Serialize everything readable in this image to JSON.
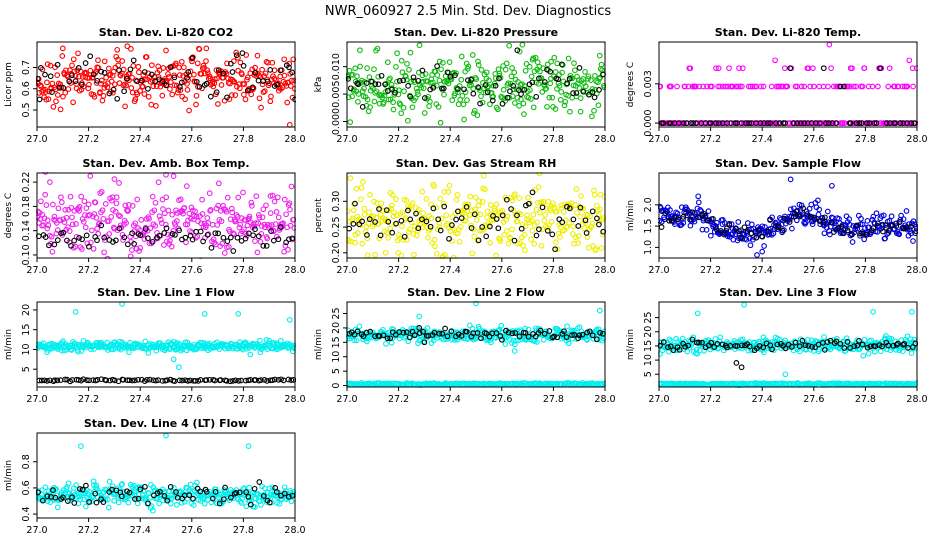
{
  "figure": {
    "title": "NWR_060927  2.5 Min. Std. Dev. Diagnostics"
  },
  "chart_data": [
    {
      "type": "scatter",
      "title": "Stan. Dev. Li-820 CO2",
      "ylabel": "Licor ppm",
      "color": "#ff0000",
      "xlim": [
        27.0,
        28.0
      ],
      "xticks": [
        27.0,
        27.2,
        27.4,
        27.6,
        27.8,
        28.0
      ],
      "ylim": [
        0.42,
        0.82
      ],
      "yticks": [
        0.5,
        0.6,
        0.7
      ],
      "series": [
        {
          "color": "#ff0000",
          "n": 340,
          "center": 0.64,
          "spread": 0.055,
          "outliers": [
            [
              27.1,
              0.79
            ],
            [
              27.35,
              0.8
            ],
            [
              27.5,
              0.78
            ],
            [
              27.98,
              0.43
            ]
          ]
        },
        {
          "color": "#000000",
          "n": 70,
          "center": 0.65,
          "spread": 0.05,
          "outliers": [
            [
              27.01,
              0.55
            ],
            [
              28.0,
              0.55
            ]
          ]
        }
      ]
    },
    {
      "type": "scatter",
      "title": "Stan. Dev. Li-820 Pressure",
      "ylabel": "kPa",
      "color": "#00bb00",
      "xlim": [
        27.0,
        28.0
      ],
      "xticks": [
        27.0,
        27.2,
        27.4,
        27.6,
        27.8,
        28.0
      ],
      "ylim": [
        -0.001,
        0.0145
      ],
      "yticks": [
        0.0,
        0.005,
        0.01
      ],
      "series": [
        {
          "color": "#11bb11",
          "n": 340,
          "center": 0.0065,
          "spread": 0.0025,
          "outliers": [
            [
              27.68,
              0.014
            ],
            [
              27.98,
              0.012
            ],
            [
              27.05,
              0.013
            ]
          ]
        },
        {
          "color": "#000000",
          "n": 70,
          "center": 0.0065,
          "spread": 0.0015,
          "outliers": [
            [
              27.66,
              0.013
            ]
          ]
        }
      ]
    },
    {
      "type": "scatter",
      "title": "Stan. Dev. Li-820 Temp.",
      "ylabel": "degrees C",
      "color": "#ff00ff",
      "xlim": [
        27.0,
        28.0
      ],
      "xticks": [
        27.0,
        27.2,
        27.4,
        27.6,
        27.8,
        28.0
      ],
      "ylim": [
        -0.0003,
        0.0062
      ],
      "yticks": [
        0.0,
        0.003
      ],
      "levels": [
        0.0,
        0.0028,
        0.0042
      ],
      "series": [
        {
          "color": "#ff00ff",
          "n": 260,
          "level_weights": [
            0.55,
            0.35,
            0.1
          ],
          "outliers": [
            [
              27.66,
              0.006
            ],
            [
              27.97,
              0.0048
            ],
            [
              27.45,
              0.0048
            ]
          ]
        },
        {
          "color": "#000000",
          "n": 70,
          "level_weights": [
            0.9,
            0.07,
            0.03
          ],
          "outliers": []
        }
      ]
    },
    {
      "type": "scatter",
      "title": "Stan. Dev. Amb. Box Temp.",
      "ylabel": "degrees C",
      "color": "#ff00ff",
      "xlim": [
        27.0,
        28.0
      ],
      "xticks": [
        27.0,
        27.2,
        27.4,
        27.6,
        27.8,
        28.0
      ],
      "ylim": [
        0.095,
        0.235
      ],
      "yticks": [
        0.1,
        0.14,
        0.18,
        0.22
      ],
      "series": [
        {
          "color": "#ee22ee",
          "n": 340,
          "center": 0.155,
          "spread": 0.028,
          "outliers": [
            [
              27.5,
              0.232
            ],
            [
              27.05,
              0.22
            ],
            [
              27.3,
              0.225
            ]
          ]
        },
        {
          "color": "#000000",
          "n": 70,
          "center": 0.128,
          "spread": 0.012,
          "outliers": []
        }
      ]
    },
    {
      "type": "scatter",
      "title": "Stan. Dev. Gas Stream RH",
      "ylabel": "percent",
      "color": "#ffff00",
      "xlim": [
        27.0,
        28.0
      ],
      "xticks": [
        27.0,
        27.2,
        27.4,
        27.6,
        27.8,
        28.0
      ],
      "ylim": [
        0.19,
        0.355
      ],
      "yticks": [
        0.2,
        0.25,
        0.3
      ],
      "series": [
        {
          "color": "#eeee00",
          "n": 340,
          "center": 0.262,
          "spread": 0.03,
          "outliers": [
            [
              27.53,
              0.35
            ],
            [
              27.15,
              0.2
            ]
          ]
        },
        {
          "color": "#000000",
          "n": 70,
          "center": 0.265,
          "spread": 0.025,
          "outliers": []
        }
      ]
    },
    {
      "type": "scatter",
      "title": "Stan. Dev. Sample Flow",
      "ylabel": "ml/min",
      "color": "#0000ff",
      "xlim": [
        27.0,
        28.0
      ],
      "xticks": [
        27.0,
        27.2,
        27.4,
        27.6,
        27.8,
        28.0
      ],
      "ylim": [
        0.75,
        2.75
      ],
      "yticks": [
        1.0,
        1.5,
        2.0
      ],
      "profile": [
        [
          27.0,
          1.65
        ],
        [
          27.15,
          1.8
        ],
        [
          27.25,
          1.45
        ],
        [
          27.35,
          1.25
        ],
        [
          27.45,
          1.5
        ],
        [
          27.55,
          1.85
        ],
        [
          27.65,
          1.55
        ],
        [
          27.75,
          1.4
        ],
        [
          27.85,
          1.5
        ],
        [
          28.0,
          1.45
        ]
      ],
      "series": [
        {
          "color": "#0000dd",
          "n": 340,
          "spread": 0.14,
          "outliers": [
            [
              27.51,
              2.6
            ],
            [
              27.38,
              0.82
            ],
            [
              27.4,
              0.9
            ],
            [
              27.67,
              2.45
            ]
          ]
        },
        {
          "color": "#000000",
          "n": 70,
          "spread": 0.08,
          "outliers": []
        }
      ]
    },
    {
      "type": "scatter",
      "title": "Stan. Dev. Line 1 Flow",
      "ylabel": "ml/min",
      "color": "#00ffff",
      "xlim": [
        27.0,
        28.0
      ],
      "xticks": [
        27.0,
        27.2,
        27.4,
        27.6,
        27.8,
        28.0
      ],
      "ylim": [
        0.5,
        22
      ],
      "yticks": [
        5,
        10,
        15,
        20
      ],
      "series": [
        {
          "color": "#00eeee",
          "n": 340,
          "center": 10.8,
          "spread": 0.6,
          "outliers": [
            [
              27.15,
              19.5
            ],
            [
              27.33,
              21.5
            ],
            [
              27.65,
              19
            ],
            [
              27.78,
              19
            ],
            [
              27.98,
              17.5
            ],
            [
              27.55,
              5.5
            ],
            [
              27.53,
              7.5
            ]
          ]
        },
        {
          "color": "#000000",
          "n": 90,
          "center": 2.2,
          "spread": 0.12,
          "outliers": []
        }
      ]
    },
    {
      "type": "scatter",
      "title": "Stan. Dev. Line 2 Flow",
      "ylabel": "ml/min",
      "color": "#00ffff",
      "xlim": [
        27.0,
        28.0
      ],
      "xticks": [
        27.0,
        27.2,
        27.4,
        27.6,
        27.8,
        28.0
      ],
      "ylim": [
        -0.5,
        29
      ],
      "yticks": [
        0,
        5,
        10,
        15,
        20,
        25
      ],
      "series": [
        {
          "color": "#00eeee",
          "n": 340,
          "center": 17.5,
          "spread": 1.2,
          "outliers": [
            [
              27.5,
              28.5
            ],
            [
              27.28,
              24
            ],
            [
              27.65,
              12
            ],
            [
              27.98,
              26
            ]
          ]
        },
        {
          "color": "#00eeee",
          "n": 200,
          "center": 0.6,
          "spread": 0.15,
          "outliers": []
        },
        {
          "color": "#000000",
          "n": 80,
          "center": 17.8,
          "spread": 0.8,
          "outliers": [
            [
              27.28,
              20
            ],
            [
              27.3,
              15
            ]
          ]
        }
      ]
    },
    {
      "type": "scatter",
      "title": "Stan. Dev. Line 3 Flow",
      "ylabel": "ml/min",
      "color": "#00ffff",
      "xlim": [
        27.0,
        28.0
      ],
      "xticks": [
        27.0,
        27.2,
        27.4,
        27.6,
        27.8,
        28.0
      ],
      "ylim": [
        0.5,
        30.5
      ],
      "yticks": [
        5,
        10,
        15,
        20,
        25
      ],
      "series": [
        {
          "color": "#00eeee",
          "n": 340,
          "center": 15.2,
          "spread": 1.2,
          "outliers": [
            [
              27.33,
              29.5
            ],
            [
              27.15,
              26.5
            ],
            [
              27.83,
              27
            ],
            [
              27.98,
              27
            ],
            [
              27.49,
              5
            ]
          ]
        },
        {
          "color": "#00eeee",
          "n": 200,
          "center": 1.6,
          "spread": 0.15,
          "outliers": []
        },
        {
          "color": "#000000",
          "n": 80,
          "center": 15.2,
          "spread": 0.9,
          "outliers": [
            [
              27.3,
              9
            ],
            [
              27.32,
              7.5
            ]
          ]
        }
      ]
    },
    {
      "type": "scatter",
      "title": "Stan. Dev. Line 4 (LT) Flow",
      "ylabel": "ml/min",
      "color": "#00ffff",
      "xlim": [
        27.0,
        28.0
      ],
      "xticks": [
        27.0,
        27.2,
        27.4,
        27.6,
        27.8,
        28.0
      ],
      "ylim": [
        0.37,
        1.02
      ],
      "yticks": [
        0.4,
        0.6,
        0.8
      ],
      "series": [
        {
          "color": "#00eeee",
          "n": 340,
          "center": 0.545,
          "spread": 0.04,
          "outliers": [
            [
              27.5,
              1.0
            ],
            [
              27.17,
              0.92
            ],
            [
              27.82,
              0.92
            ],
            [
              27.33,
              0.63
            ]
          ]
        },
        {
          "color": "#000000",
          "n": 70,
          "center": 0.54,
          "spread": 0.035,
          "outliers": []
        }
      ]
    }
  ]
}
